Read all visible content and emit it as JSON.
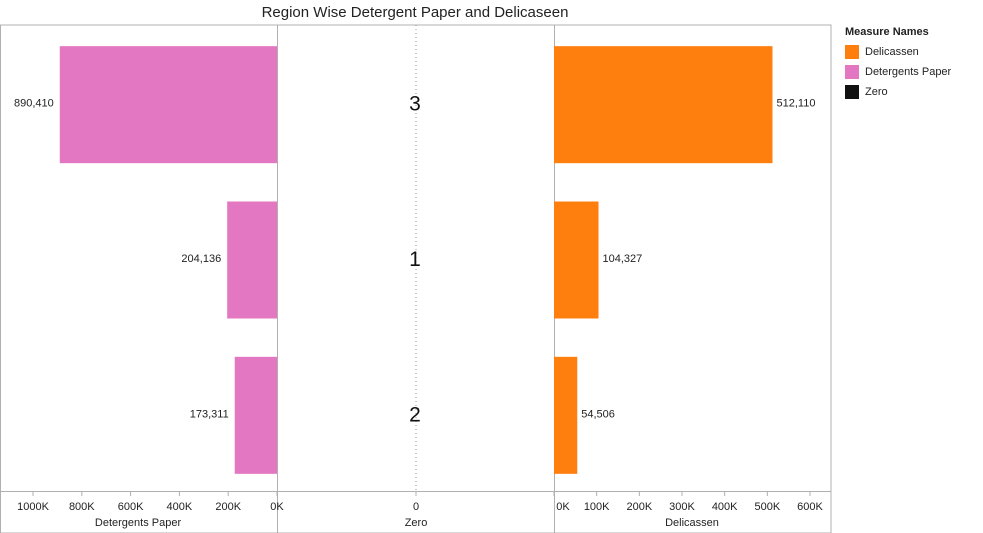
{
  "chart_data": {
    "type": "bar",
    "title": "Region Wise Detergent Paper and Delicaseen",
    "categories": [
      "3",
      "1",
      "2"
    ],
    "series": [
      {
        "name": "Detergents Paper",
        "values": [
          890410,
          204136,
          173311
        ],
        "labels": [
          "890,410",
          "204,136",
          "173,311"
        ],
        "color": "#e377c2"
      },
      {
        "name": "Delicassen",
        "values": [
          512110,
          104327,
          54506
        ],
        "labels": [
          "512,110",
          "104,327",
          "54,506"
        ],
        "color": "#ff7f0e"
      },
      {
        "name": "Zero",
        "values": [
          0,
          0,
          0
        ],
        "color": "#111111"
      }
    ],
    "panels": [
      {
        "axis_label": "Detergents Paper",
        "xlim": [
          1000000,
          0
        ],
        "reversed": true,
        "ticks": [
          {
            "v": 1000000,
            "label": "1000K"
          },
          {
            "v": 800000,
            "label": "800K"
          },
          {
            "v": 600000,
            "label": "600K"
          },
          {
            "v": 400000,
            "label": "400K"
          },
          {
            "v": 200000,
            "label": "200K"
          },
          {
            "v": 0,
            "label": "0K"
          }
        ]
      },
      {
        "axis_label": "Zero",
        "ticks": [
          {
            "v": 0,
            "label": "0"
          }
        ]
      },
      {
        "axis_label": "Delicassen",
        "xlim": [
          0,
          600000
        ],
        "ticks": [
          {
            "v": 0,
            "label": "0K"
          },
          {
            "v": 100000,
            "label": "100K"
          },
          {
            "v": 200000,
            "label": "200K"
          },
          {
            "v": 300000,
            "label": "300K"
          },
          {
            "v": 400000,
            "label": "400K"
          },
          {
            "v": 500000,
            "label": "500K"
          },
          {
            "v": 600000,
            "label": "600K"
          }
        ]
      }
    ],
    "legend": {
      "title": "Measure Names",
      "position": "right",
      "items": [
        {
          "label": "Delicassen",
          "color": "#ff7f0e"
        },
        {
          "label": "Detergents Paper",
          "color": "#e377c2"
        },
        {
          "label": "Zero",
          "color": "#111111"
        }
      ]
    }
  }
}
